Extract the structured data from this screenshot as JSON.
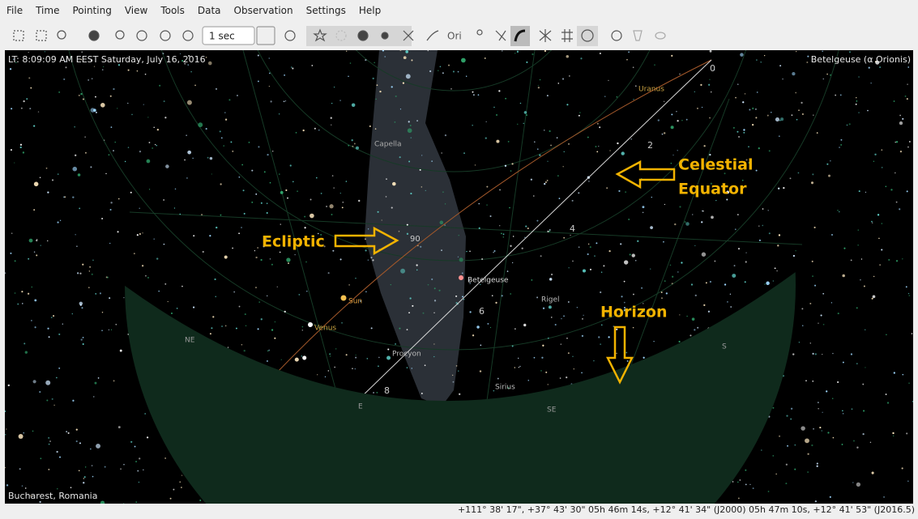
{
  "menu": {
    "items": [
      "File",
      "Time",
      "Pointing",
      "View",
      "Tools",
      "Data",
      "Observation",
      "Settings",
      "Help"
    ]
  },
  "toolbar": {
    "time_step": "1 sec"
  },
  "sky": {
    "info_left": "LT: 8:09:09 AM EEST  Saturday, July 16, 2016",
    "info_right": "Betelgeuse (α Orionis)",
    "location": "Bucharest, Romania",
    "labels": [
      "Uranus",
      "Capella",
      "Betelgeuse",
      "Rigel",
      "Sun",
      "Venus",
      "Procyon",
      "Sirius",
      "NE",
      "E",
      "SE",
      "S"
    ],
    "equator_hours": [
      "0",
      "2",
      "4",
      "6",
      "8"
    ],
    "ecliptic_degree": "90",
    "annotations": {
      "equator": [
        "Celestial",
        "Equator"
      ],
      "ecliptic": "Ecliptic",
      "horizon": "Horizon"
    }
  },
  "status": "+111° 38' 17\", +37° 43' 30\"  05h 46m 14s, +12° 41' 34\" (J2000)  05h 47m 10s, +12° 41' 53\" (J2016.5)"
}
